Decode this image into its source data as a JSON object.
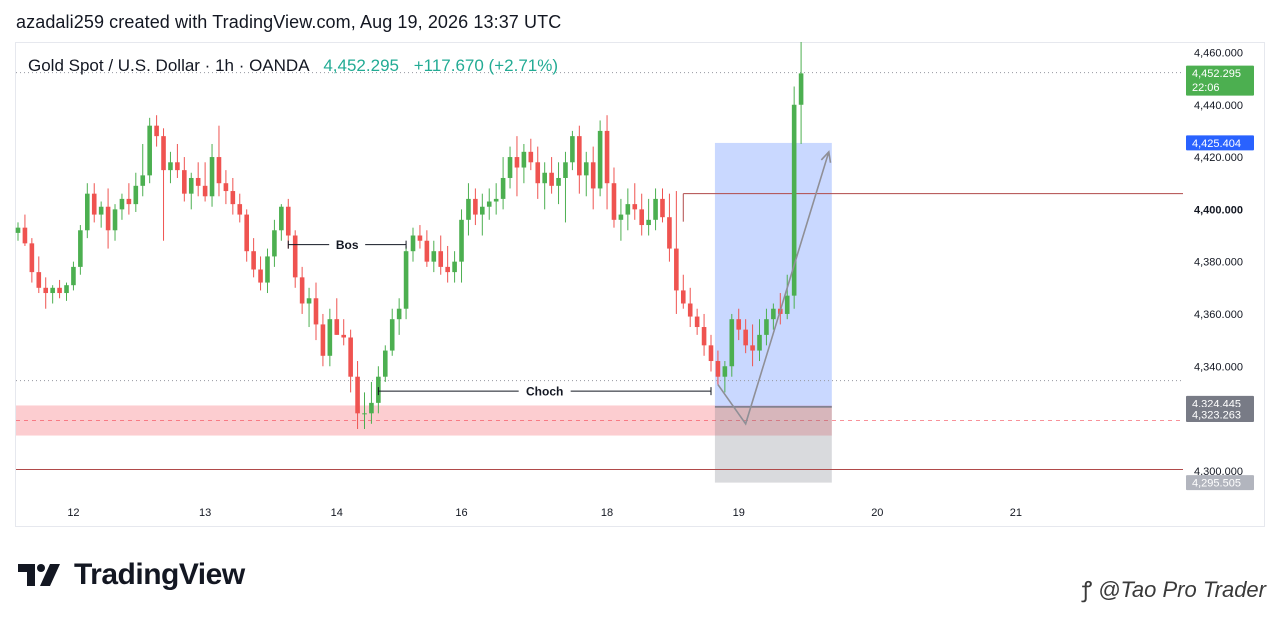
{
  "caption": "azadali259 created with TradingView.com, Aug 19, 2026 13:37 UTC",
  "legend": {
    "symbol": "Gold Spot / U.S. Dollar · 1h · OANDA",
    "price": "4,452.295",
    "change": "+117.670 (+2.71%)"
  },
  "colors": {
    "up": "#4caf50",
    "down": "#ef5350",
    "current_price": "#4caf50",
    "box_high": "#2962ff",
    "box_low": "#787b86"
  },
  "brand": {
    "name": "TradingView"
  },
  "watermark": {
    "text": "@Tao Pro Trader",
    "icon": "weibo-like-icon"
  },
  "chart_data": {
    "type": "candlestick",
    "timeframe": "1h",
    "ylim": [
      4290,
      4464
    ],
    "x_ticks": [
      {
        "label": "12",
        "bar": 8
      },
      {
        "label": "13",
        "bar": 27
      },
      {
        "label": "14",
        "bar": 46
      },
      {
        "label": "16",
        "bar": 64
      },
      {
        "label": "18",
        "bar": 85
      },
      {
        "label": "19",
        "bar": 104
      },
      {
        "label": "20",
        "bar": 124
      },
      {
        "label": "21",
        "bar": 144
      }
    ],
    "y_ticks": [
      "4,460.000",
      "4,440.000",
      "4,420.000",
      "4,400.000",
      "4,380.000",
      "4,360.000",
      "4,340.000",
      "4,300.000"
    ],
    "y_tick_values": [
      4460,
      4440,
      4420,
      4400,
      4380,
      4360,
      4340,
      4300
    ],
    "price_labels": [
      {
        "value": 4452.295,
        "text": "4,452.295",
        "sub": "22:06",
        "color": "#4caf50"
      },
      {
        "value": 4425.404,
        "text": "4,425.404",
        "color": "#2962ff"
      },
      {
        "value": 4324.445,
        "text": "4,324.445",
        "color": "#787b86"
      },
      {
        "value": 4323.263,
        "text": "4,323.263",
        "color": "#787b86"
      },
      {
        "value": 4295.505,
        "text": "4,295.505",
        "color": "#b2b5be"
      }
    ],
    "horizontal_lines": [
      {
        "value": 4452.3,
        "style": "dotted",
        "from_bar": 0
      },
      {
        "value": 4334.5,
        "style": "dotted",
        "from_bar": 0
      },
      {
        "value": 4406.0,
        "style": "solid-red",
        "from_bar": 96
      },
      {
        "value": 4300.5,
        "style": "solid-red",
        "from_bar": 0
      }
    ],
    "zones": [
      {
        "kind": "demand",
        "top": 4325.0,
        "bottom": 4313.5,
        "from_bar": 0,
        "to_bar": 117
      },
      {
        "kind": "target",
        "top": 4425.404,
        "bottom": 4324.445,
        "from_bar": 101,
        "to_bar": 117
      },
      {
        "kind": "stop",
        "top": 4324.445,
        "bottom": 4295.505,
        "from_bar": 101,
        "to_bar": 117
      }
    ],
    "annotations": [
      {
        "text": "Bos",
        "value": 4386.5,
        "from_bar": 39,
        "to_bar": 56
      },
      {
        "text": "Choch",
        "value": 4330.5,
        "from_bar": 52,
        "to_bar": 100
      }
    ],
    "path": [
      {
        "bar": 101,
        "value": 4333
      },
      {
        "bar": 105,
        "value": 4318
      },
      {
        "bar": 117,
        "value": 4422
      }
    ],
    "candles": [
      [
        4391,
        4395,
        4388,
        4393
      ],
      [
        4393,
        4398,
        4386,
        4387
      ],
      [
        4387,
        4389,
        4372,
        4376
      ],
      [
        4376,
        4382,
        4368,
        4370
      ],
      [
        4370,
        4374,
        4362,
        4368
      ],
      [
        4368,
        4371,
        4364,
        4370
      ],
      [
        4370,
        4373,
        4366,
        4368
      ],
      [
        4368,
        4372,
        4365,
        4371
      ],
      [
        4371,
        4380,
        4369,
        4378
      ],
      [
        4378,
        4394,
        4375,
        4392
      ],
      [
        4392,
        4410,
        4389,
        4406
      ],
      [
        4406,
        4410,
        4395,
        4398
      ],
      [
        4398,
        4403,
        4393,
        4401
      ],
      [
        4401,
        4408,
        4385,
        4392
      ],
      [
        4392,
        4402,
        4388,
        4400
      ],
      [
        4400,
        4406,
        4396,
        4404
      ],
      [
        4404,
        4410,
        4398,
        4402
      ],
      [
        4402,
        4414,
        4399,
        4409
      ],
      [
        4409,
        4425,
        4405,
        4413
      ],
      [
        4413,
        4435,
        4410,
        4432
      ],
      [
        4432,
        4436,
        4424,
        4428
      ],
      [
        4428,
        4431,
        4388,
        4415
      ],
      [
        4415,
        4422,
        4410,
        4418
      ],
      [
        4418,
        4425,
        4412,
        4415
      ],
      [
        4415,
        4420,
        4403,
        4406
      ],
      [
        4406,
        4414,
        4400,
        4412
      ],
      [
        4412,
        4418,
        4405,
        4409
      ],
      [
        4409,
        4418,
        4403,
        4405
      ],
      [
        4405,
        4425,
        4401,
        4420
      ],
      [
        4420,
        4432,
        4405,
        4410
      ],
      [
        4410,
        4415,
        4402,
        4407
      ],
      [
        4407,
        4412,
        4398,
        4402
      ],
      [
        4402,
        4406,
        4395,
        4398
      ],
      [
        4398,
        4400,
        4380,
        4384
      ],
      [
        4384,
        4389,
        4374,
        4377
      ],
      [
        4377,
        4382,
        4369,
        4372
      ],
      [
        4372,
        4385,
        4368,
        4382
      ],
      [
        4382,
        4396,
        4378,
        4392
      ],
      [
        4392,
        4402,
        4388,
        4401
      ],
      [
        4401,
        4404,
        4385,
        4390
      ],
      [
        4390,
        4392,
        4370,
        4374
      ],
      [
        4374,
        4378,
        4360,
        4364
      ],
      [
        4364,
        4370,
        4355,
        4366
      ],
      [
        4366,
        4372,
        4350,
        4356
      ],
      [
        4356,
        4360,
        4340,
        4344
      ],
      [
        4344,
        4362,
        4340,
        4358
      ],
      [
        4358,
        4366,
        4352,
        4352
      ],
      [
        4352,
        4358,
        4348,
        4351
      ],
      [
        4351,
        4354,
        4330,
        4336
      ],
      [
        4336,
        4342,
        4316,
        4322
      ],
      [
        4322,
        4330,
        4316,
        4322
      ],
      [
        4322,
        4334,
        4318,
        4326
      ],
      [
        4326,
        4340,
        4322,
        4336
      ],
      [
        4336,
        4348,
        4334,
        4346
      ],
      [
        4346,
        4362,
        4344,
        4358
      ],
      [
        4358,
        4366,
        4352,
        4362
      ],
      [
        4362,
        4386,
        4358,
        4384
      ],
      [
        4384,
        4393,
        4380,
        4390
      ],
      [
        4390,
        4394,
        4385,
        4388
      ],
      [
        4388,
        4392,
        4378,
        4380
      ],
      [
        4380,
        4388,
        4376,
        4384
      ],
      [
        4384,
        4390,
        4375,
        4378
      ],
      [
        4378,
        4386,
        4372,
        4376
      ],
      [
        4376,
        4384,
        4372,
        4380
      ],
      [
        4380,
        4400,
        4372,
        4396
      ],
      [
        4396,
        4410,
        4390,
        4404
      ],
      [
        4404,
        4408,
        4394,
        4398
      ],
      [
        4398,
        4406,
        4390,
        4401
      ],
      [
        4401,
        4408,
        4396,
        4403
      ],
      [
        4403,
        4410,
        4398,
        4404
      ],
      [
        4404,
        4420,
        4400,
        4412
      ],
      [
        4412,
        4424,
        4408,
        4420
      ],
      [
        4420,
        4428,
        4405,
        4416
      ],
      [
        4416,
        4425,
        4410,
        4422
      ],
      [
        4422,
        4427,
        4415,
        4418
      ],
      [
        4418,
        4424,
        4404,
        4410
      ],
      [
        4410,
        4418,
        4400,
        4414
      ],
      [
        4414,
        4420,
        4406,
        4409
      ],
      [
        4409,
        4418,
        4402,
        4412
      ],
      [
        4412,
        4422,
        4395,
        4418
      ],
      [
        4418,
        4430,
        4415,
        4428
      ],
      [
        4428,
        4432,
        4406,
        4413
      ],
      [
        4413,
        4422,
        4405,
        4418
      ],
      [
        4418,
        4424,
        4400,
        4408
      ],
      [
        4408,
        4434,
        4405,
        4430
      ],
      [
        4430,
        4436,
        4400,
        4410
      ],
      [
        4410,
        4416,
        4393,
        4396
      ],
      [
        4396,
        4404,
        4388,
        4398
      ],
      [
        4398,
        4408,
        4392,
        4402
      ],
      [
        4402,
        4410,
        4396,
        4400
      ],
      [
        4400,
        4406,
        4390,
        4394
      ],
      [
        4394,
        4404,
        4390,
        4396
      ],
      [
        4396,
        4408,
        4392,
        4404
      ],
      [
        4404,
        4408,
        4395,
        4397
      ],
      [
        4397,
        4406,
        4380,
        4385
      ],
      [
        4385,
        4407,
        4360,
        4369
      ],
      [
        4369,
        4375,
        4362,
        4364
      ],
      [
        4364,
        4370,
        4355,
        4359
      ],
      [
        4359,
        4362,
        4352,
        4355
      ],
      [
        4355,
        4360,
        4344,
        4348
      ],
      [
        4348,
        4352,
        4338,
        4342
      ],
      [
        4342,
        4346,
        4333,
        4336
      ],
      [
        4336,
        4342,
        4330,
        4340
      ],
      [
        4340,
        4360,
        4336,
        4358
      ],
      [
        4358,
        4362,
        4350,
        4354
      ],
      [
        4354,
        4358,
        4345,
        4348
      ],
      [
        4348,
        4356,
        4340,
        4346
      ],
      [
        4346,
        4358,
        4342,
        4352
      ],
      [
        4352,
        4362,
        4348,
        4358
      ],
      [
        4358,
        4364,
        4354,
        4362
      ],
      [
        4362,
        4368,
        4356,
        4360
      ],
      [
        4360,
        4375,
        4358,
        4367
      ],
      [
        4367,
        4447,
        4362,
        4440
      ],
      [
        4440,
        4464,
        4425,
        4452
      ]
    ]
  }
}
